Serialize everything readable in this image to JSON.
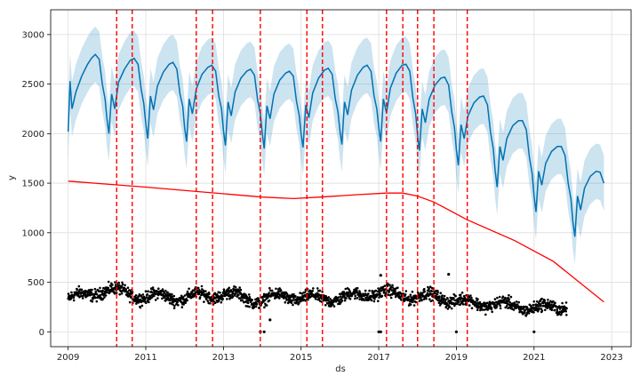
{
  "chart_data": {
    "type": "line",
    "xlabel": "ds",
    "ylabel": "y",
    "xlim": [
      2008.55,
      2023.5
    ],
    "ylim": [
      -150,
      3250
    ],
    "grid": true,
    "x_ticks": [
      2009,
      2011,
      2013,
      2015,
      2017,
      2019,
      2021,
      2023
    ],
    "y_ticks": [
      0,
      500,
      1000,
      1500,
      2000,
      2500,
      3000
    ],
    "changepoints": [
      2010.25,
      2010.65,
      2012.3,
      2012.72,
      2013.95,
      2015.15,
      2015.55,
      2017.2,
      2017.62,
      2018.0,
      2018.42,
      2019.28
    ],
    "series": [
      {
        "kind": "forecast_line",
        "color": "#0072B2",
        "points": [
          [
            2009.0,
            2020
          ],
          [
            2009.05,
            2530
          ],
          [
            2009.1,
            2250
          ],
          [
            2009.2,
            2420
          ],
          [
            2009.35,
            2580
          ],
          [
            2009.5,
            2700
          ],
          [
            2009.6,
            2760
          ],
          [
            2009.7,
            2800
          ],
          [
            2009.8,
            2750
          ],
          [
            2009.88,
            2500
          ],
          [
            2009.95,
            2350
          ],
          [
            2010.0,
            2150
          ],
          [
            2010.05,
            2000
          ],
          [
            2010.12,
            2400
          ],
          [
            2010.2,
            2250
          ],
          [
            2010.3,
            2520
          ],
          [
            2010.45,
            2650
          ],
          [
            2010.6,
            2740
          ],
          [
            2010.7,
            2760
          ],
          [
            2010.8,
            2700
          ],
          [
            2010.88,
            2450
          ],
          [
            2010.95,
            2300
          ],
          [
            2011.0,
            2100
          ],
          [
            2011.05,
            1950
          ],
          [
            2011.12,
            2380
          ],
          [
            2011.2,
            2240
          ],
          [
            2011.3,
            2480
          ],
          [
            2011.45,
            2620
          ],
          [
            2011.6,
            2700
          ],
          [
            2011.7,
            2720
          ],
          [
            2011.8,
            2650
          ],
          [
            2011.88,
            2400
          ],
          [
            2011.95,
            2280
          ],
          [
            2012.0,
            2060
          ],
          [
            2012.05,
            1920
          ],
          [
            2012.12,
            2350
          ],
          [
            2012.2,
            2200
          ],
          [
            2012.3,
            2450
          ],
          [
            2012.45,
            2600
          ],
          [
            2012.6,
            2670
          ],
          [
            2012.7,
            2690
          ],
          [
            2012.8,
            2630
          ],
          [
            2012.88,
            2380
          ],
          [
            2012.95,
            2250
          ],
          [
            2013.0,
            2030
          ],
          [
            2013.05,
            1880
          ],
          [
            2013.12,
            2320
          ],
          [
            2013.2,
            2180
          ],
          [
            2013.3,
            2420
          ],
          [
            2013.45,
            2560
          ],
          [
            2013.6,
            2630
          ],
          [
            2013.7,
            2650
          ],
          [
            2013.8,
            2590
          ],
          [
            2013.88,
            2340
          ],
          [
            2013.95,
            2200
          ],
          [
            2014.0,
            2000
          ],
          [
            2014.05,
            1850
          ],
          [
            2014.12,
            2280
          ],
          [
            2014.2,
            2150
          ],
          [
            2014.3,
            2400
          ],
          [
            2014.45,
            2540
          ],
          [
            2014.6,
            2610
          ],
          [
            2014.7,
            2630
          ],
          [
            2014.8,
            2580
          ],
          [
            2014.88,
            2330
          ],
          [
            2014.95,
            2190
          ],
          [
            2015.0,
            2000
          ],
          [
            2015.05,
            1860
          ],
          [
            2015.12,
            2290
          ],
          [
            2015.2,
            2160
          ],
          [
            2015.3,
            2410
          ],
          [
            2015.45,
            2560
          ],
          [
            2015.6,
            2640
          ],
          [
            2015.7,
            2660
          ],
          [
            2015.8,
            2600
          ],
          [
            2015.88,
            2350
          ],
          [
            2015.95,
            2220
          ],
          [
            2016.0,
            2030
          ],
          [
            2016.05,
            1890
          ],
          [
            2016.12,
            2320
          ],
          [
            2016.2,
            2190
          ],
          [
            2016.3,
            2440
          ],
          [
            2016.45,
            2590
          ],
          [
            2016.6,
            2670
          ],
          [
            2016.7,
            2690
          ],
          [
            2016.8,
            2630
          ],
          [
            2016.88,
            2380
          ],
          [
            2016.95,
            2250
          ],
          [
            2017.0,
            2060
          ],
          [
            2017.05,
            1920
          ],
          [
            2017.12,
            2350
          ],
          [
            2017.2,
            2210
          ],
          [
            2017.3,
            2460
          ],
          [
            2017.45,
            2610
          ],
          [
            2017.6,
            2690
          ],
          [
            2017.7,
            2700
          ],
          [
            2017.8,
            2630
          ],
          [
            2017.88,
            2360
          ],
          [
            2017.95,
            2200
          ],
          [
            2018.0,
            1980
          ],
          [
            2018.05,
            1830
          ],
          [
            2018.12,
            2250
          ],
          [
            2018.2,
            2110
          ],
          [
            2018.3,
            2350
          ],
          [
            2018.45,
            2490
          ],
          [
            2018.6,
            2560
          ],
          [
            2018.7,
            2570
          ],
          [
            2018.8,
            2490
          ],
          [
            2018.88,
            2220
          ],
          [
            2018.95,
            2060
          ],
          [
            2019.0,
            1840
          ],
          [
            2019.05,
            1680
          ],
          [
            2019.12,
            2090
          ],
          [
            2019.2,
            1950
          ],
          [
            2019.3,
            2180
          ],
          [
            2019.45,
            2310
          ],
          [
            2019.6,
            2370
          ],
          [
            2019.7,
            2380
          ],
          [
            2019.8,
            2290
          ],
          [
            2019.88,
            2010
          ],
          [
            2019.95,
            1850
          ],
          [
            2020.0,
            1620
          ],
          [
            2020.05,
            1460
          ],
          [
            2020.12,
            1870
          ],
          [
            2020.2,
            1730
          ],
          [
            2020.3,
            1950
          ],
          [
            2020.45,
            2080
          ],
          [
            2020.6,
            2130
          ],
          [
            2020.7,
            2130
          ],
          [
            2020.8,
            2040
          ],
          [
            2020.88,
            1760
          ],
          [
            2020.95,
            1600
          ],
          [
            2021.0,
            1370
          ],
          [
            2021.05,
            1210
          ],
          [
            2021.12,
            1620
          ],
          [
            2021.2,
            1480
          ],
          [
            2021.3,
            1700
          ],
          [
            2021.45,
            1820
          ],
          [
            2021.6,
            1870
          ],
          [
            2021.7,
            1870
          ],
          [
            2021.8,
            1780
          ],
          [
            2021.88,
            1500
          ],
          [
            2021.95,
            1340
          ],
          [
            2022.0,
            1110
          ],
          [
            2022.05,
            960
          ],
          [
            2022.12,
            1370
          ],
          [
            2022.2,
            1230
          ],
          [
            2022.3,
            1450
          ],
          [
            2022.45,
            1570
          ],
          [
            2022.6,
            1620
          ],
          [
            2022.7,
            1610
          ],
          [
            2022.8,
            1500
          ]
        ]
      },
      {
        "kind": "uncertainty_band",
        "color": "#0072B2",
        "opacity": 0.2,
        "width_upper": 280,
        "width_lower": 280
      },
      {
        "kind": "trend",
        "color": "#ff0000",
        "points": [
          [
            2009.0,
            1520
          ],
          [
            2011.0,
            1460
          ],
          [
            2012.5,
            1410
          ],
          [
            2014.0,
            1360
          ],
          [
            2014.8,
            1345
          ],
          [
            2015.5,
            1360
          ],
          [
            2016.5,
            1385
          ],
          [
            2017.2,
            1400
          ],
          [
            2017.62,
            1400
          ],
          [
            2018.0,
            1370
          ],
          [
            2018.42,
            1310
          ],
          [
            2019.28,
            1130
          ],
          [
            2020.5,
            920
          ],
          [
            2021.5,
            710
          ],
          [
            2022.8,
            300
          ]
        ]
      },
      {
        "kind": "observed_points",
        "color": "#000000",
        "x_range": [
          2009.0,
          2021.85
        ],
        "level_points": [
          [
            2009.0,
            330
          ],
          [
            2009.5,
            380
          ],
          [
            2009.9,
            420
          ],
          [
            2010.5,
            400
          ],
          [
            2011.0,
            340
          ],
          [
            2011.5,
            370
          ],
          [
            2012.0,
            330
          ],
          [
            2012.5,
            380
          ],
          [
            2013.0,
            370
          ],
          [
            2013.5,
            360
          ],
          [
            2014.0,
            300
          ],
          [
            2014.5,
            380
          ],
          [
            2015.0,
            330
          ],
          [
            2015.5,
            350
          ],
          [
            2016.0,
            330
          ],
          [
            2016.5,
            380
          ],
          [
            2017.0,
            390
          ],
          [
            2017.5,
            380
          ],
          [
            2018.0,
            350
          ],
          [
            2018.5,
            360
          ],
          [
            2019.0,
            310
          ],
          [
            2019.5,
            290
          ],
          [
            2020.0,
            280
          ],
          [
            2020.5,
            260
          ],
          [
            2021.0,
            240
          ],
          [
            2021.5,
            250
          ],
          [
            2021.85,
            260
          ]
        ],
        "spread": 60,
        "count": 1800,
        "outliers": [
          [
            2013.95,
            0
          ],
          [
            2014.05,
            0
          ],
          [
            2017.0,
            0
          ],
          [
            2017.05,
            0
          ],
          [
            2019.0,
            0
          ],
          [
            2021.0,
            0
          ],
          [
            2017.05,
            570
          ],
          [
            2018.8,
            580
          ],
          [
            2014.2,
            120
          ]
        ]
      }
    ]
  }
}
